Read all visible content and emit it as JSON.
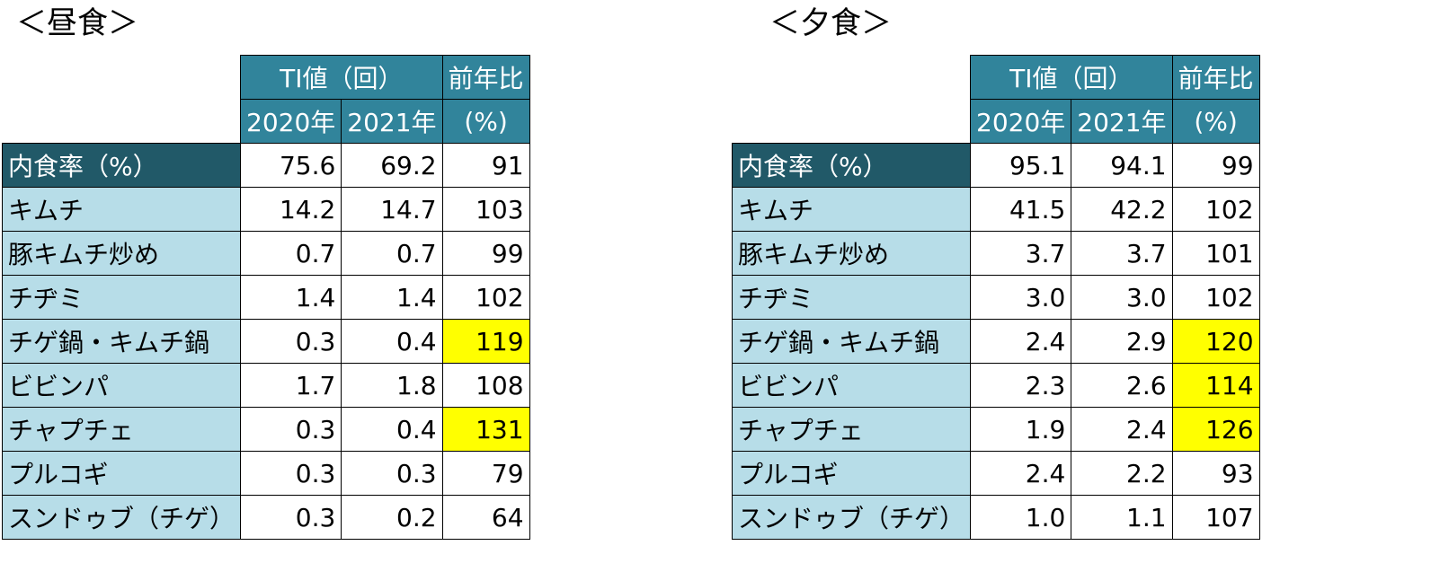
{
  "colors": {
    "header_bg": "#31849b",
    "label_bg": "#b7dde8",
    "first_label_bg": "#215968",
    "highlight": "#ffff00"
  },
  "header": {
    "ti": "TI値（回）",
    "ratio_line1": "前年比",
    "year1": "2020年",
    "year2": "2021年",
    "ratio_line2": "(%)"
  },
  "lunch": {
    "title": "＜昼食＞",
    "rows": [
      {
        "label": "内食率（%）",
        "v2020": "75.6",
        "v2021": "69.2",
        "ratio": "91",
        "highlight": false
      },
      {
        "label": "キムチ",
        "v2020": "14.2",
        "v2021": "14.7",
        "ratio": "103",
        "highlight": false
      },
      {
        "label": "豚キムチ炒め",
        "v2020": "0.7",
        "v2021": "0.7",
        "ratio": "99",
        "highlight": false
      },
      {
        "label": "チヂミ",
        "v2020": "1.4",
        "v2021": "1.4",
        "ratio": "102",
        "highlight": false
      },
      {
        "label": "チゲ鍋・キムチ鍋",
        "v2020": "0.3",
        "v2021": "0.4",
        "ratio": "119",
        "highlight": true
      },
      {
        "label": "ビビンパ",
        "v2020": "1.7",
        "v2021": "1.8",
        "ratio": "108",
        "highlight": false
      },
      {
        "label": "チャプチェ",
        "v2020": "0.3",
        "v2021": "0.4",
        "ratio": "131",
        "highlight": true
      },
      {
        "label": "プルコギ",
        "v2020": "0.3",
        "v2021": "0.3",
        "ratio": "79",
        "highlight": false
      },
      {
        "label": "スンドゥブ（チゲ）",
        "v2020": "0.3",
        "v2021": "0.2",
        "ratio": "64",
        "highlight": false
      }
    ]
  },
  "dinner": {
    "title": "＜夕食＞",
    "rows": [
      {
        "label": "内食率（%）",
        "v2020": "95.1",
        "v2021": "94.1",
        "ratio": "99",
        "highlight": false
      },
      {
        "label": "キムチ",
        "v2020": "41.5",
        "v2021": "42.2",
        "ratio": "102",
        "highlight": false
      },
      {
        "label": "豚キムチ炒め",
        "v2020": "3.7",
        "v2021": "3.7",
        "ratio": "101",
        "highlight": false
      },
      {
        "label": "チヂミ",
        "v2020": "3.0",
        "v2021": "3.0",
        "ratio": "102",
        "highlight": false
      },
      {
        "label": "チゲ鍋・キムチ鍋",
        "v2020": "2.4",
        "v2021": "2.9",
        "ratio": "120",
        "highlight": true
      },
      {
        "label": "ビビンパ",
        "v2020": "2.3",
        "v2021": "2.6",
        "ratio": "114",
        "highlight": true
      },
      {
        "label": "チャプチェ",
        "v2020": "1.9",
        "v2021": "2.4",
        "ratio": "126",
        "highlight": true
      },
      {
        "label": "プルコギ",
        "v2020": "2.4",
        "v2021": "2.2",
        "ratio": "93",
        "highlight": false
      },
      {
        "label": "スンドゥブ（チゲ）",
        "v2020": "1.0",
        "v2021": "1.1",
        "ratio": "107",
        "highlight": false
      }
    ]
  }
}
